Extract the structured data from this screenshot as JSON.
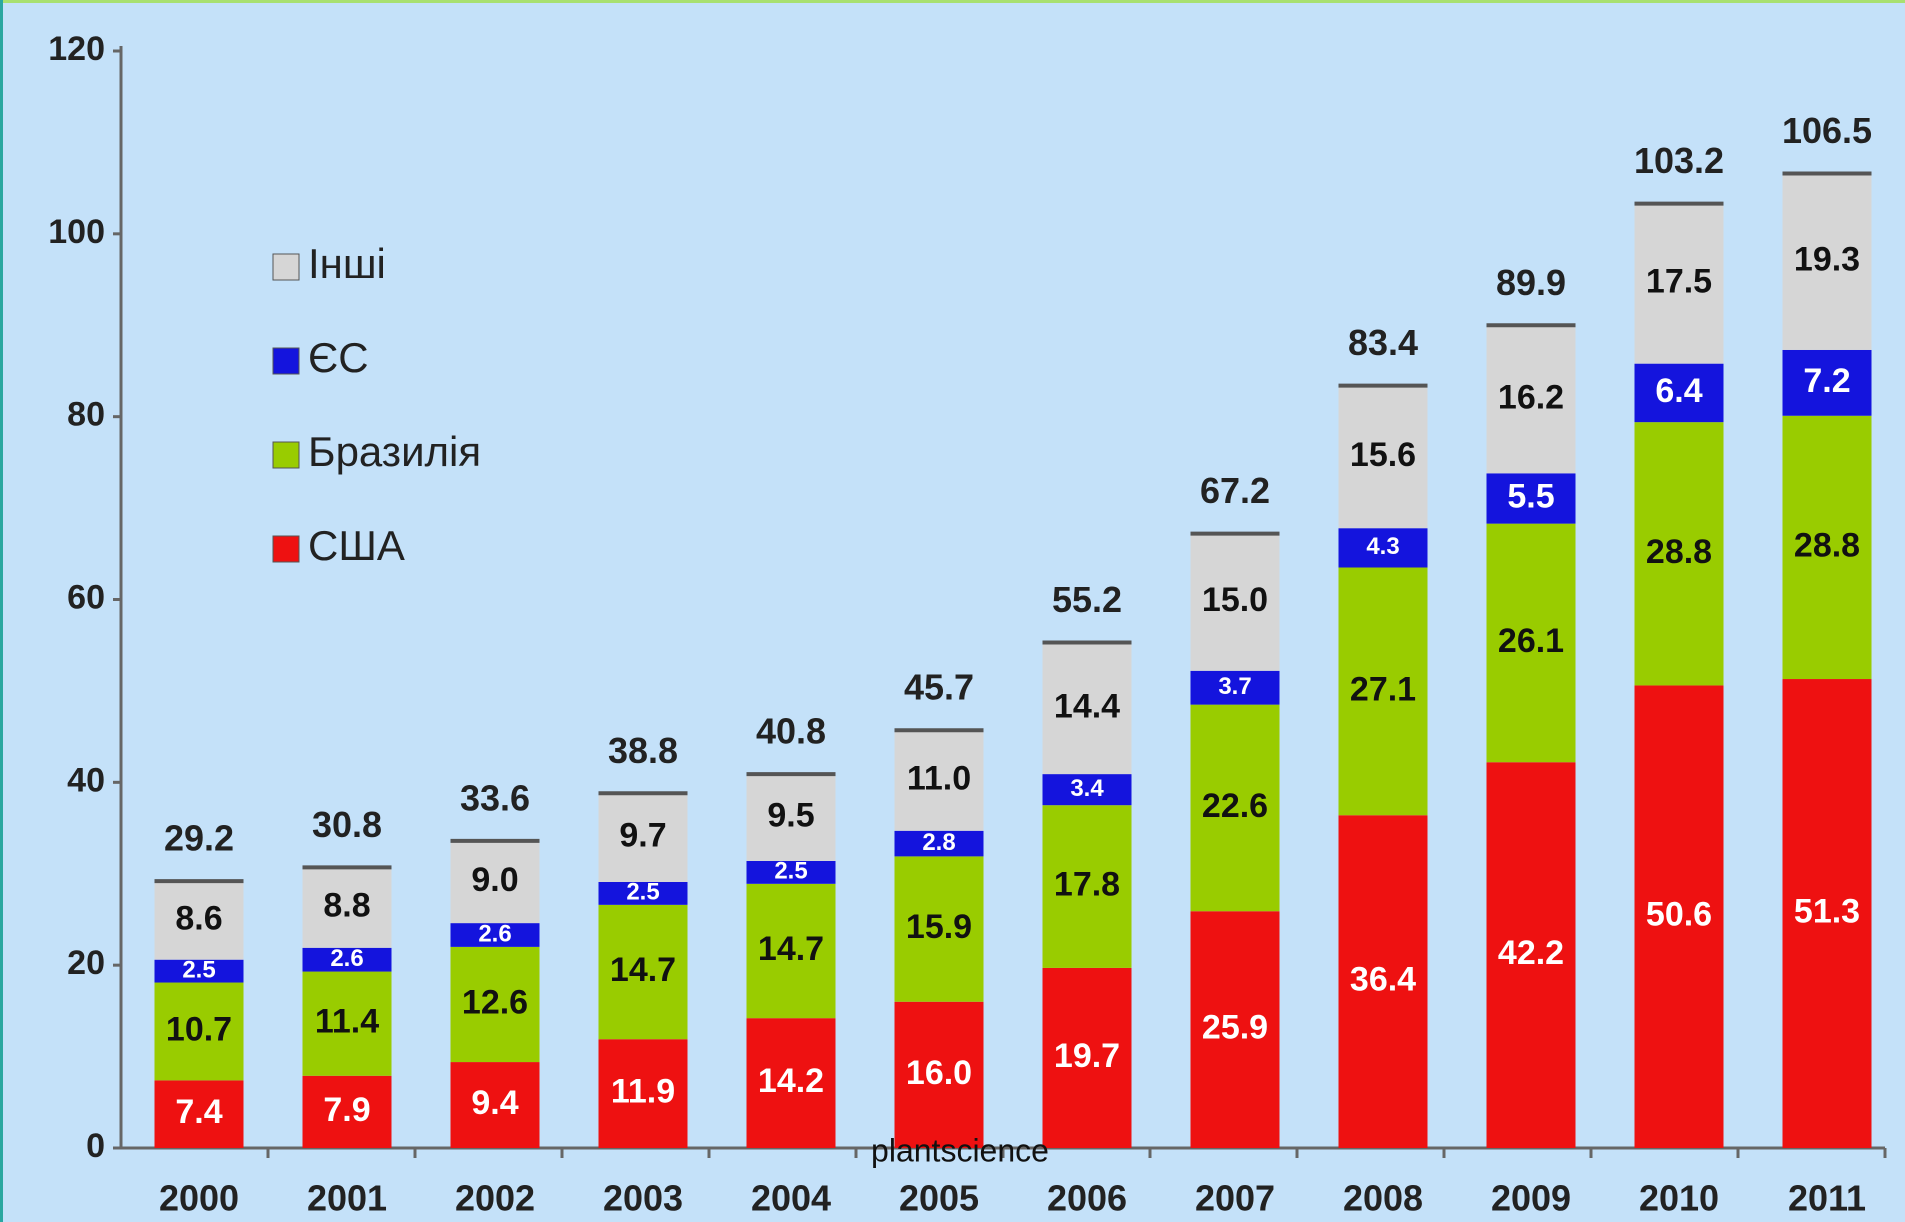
{
  "chart_data": {
    "type": "stacked_bar",
    "categories": [
      "2000",
      "2001",
      "2002",
      "2003",
      "2004",
      "2005",
      "2006",
      "2007",
      "2008",
      "2009",
      "2010",
      "2011"
    ],
    "series": [
      {
        "name": "США",
        "color": "#ee1111",
        "label_color": "#ffffff",
        "values": [
          7.4,
          7.9,
          9.4,
          11.9,
          14.2,
          16.0,
          19.7,
          25.9,
          36.4,
          42.2,
          50.6,
          51.3
        ],
        "value_labels": [
          "7.4",
          "7.9",
          "9.4",
          "11.9",
          "14.2",
          "16.0",
          "19.7",
          "25.9",
          "36.4",
          "42.2",
          "50.6",
          "51.3"
        ]
      },
      {
        "name": "Бразилія",
        "color": "#99cc00",
        "label_color": "#111111",
        "values": [
          10.7,
          11.4,
          12.6,
          14.7,
          14.7,
          15.9,
          17.8,
          22.6,
          27.1,
          26.1,
          28.8,
          28.8
        ],
        "value_labels": [
          "10.7",
          "11.4",
          "12.6",
          "14.7",
          "14.7",
          "15.9",
          "17.8",
          "22.6",
          "27.1",
          "26.1",
          "28.8",
          "28.8"
        ]
      },
      {
        "name": "ЄС",
        "color": "#1414dd",
        "label_color": "#ffffff",
        "values": [
          2.5,
          2.6,
          2.6,
          2.5,
          2.5,
          2.8,
          3.4,
          3.7,
          4.3,
          5.5,
          6.4,
          7.2
        ],
        "value_labels": [
          "2.5",
          "2.6",
          "2.6",
          "2.5",
          "2.5",
          "2.8",
          "3.4",
          "3.7",
          "4.3",
          "5.5",
          "6.4",
          "7.2"
        ]
      },
      {
        "name": "Інші",
        "color": "#d6d6d6",
        "label_color": "#111111",
        "values": [
          8.6,
          8.8,
          9.0,
          9.7,
          9.5,
          11.0,
          14.4,
          15.0,
          15.6,
          16.2,
          17.5,
          19.3
        ],
        "value_labels": [
          "8.6",
          "8.8",
          "9.0",
          "9.7",
          "9.5",
          "11.0",
          "14.4",
          "15.0",
          "15.6",
          "16.2",
          "17.5",
          "19.3"
        ]
      }
    ],
    "totals": [
      29.2,
      30.8,
      33.6,
      38.8,
      40.8,
      45.7,
      55.2,
      67.2,
      83.4,
      89.9,
      103.2,
      106.5
    ],
    "ylim": [
      0,
      120
    ],
    "yticks": [
      0,
      20,
      40,
      60,
      80,
      100,
      120
    ],
    "legend": "upper left",
    "watermark": "plantscience"
  }
}
